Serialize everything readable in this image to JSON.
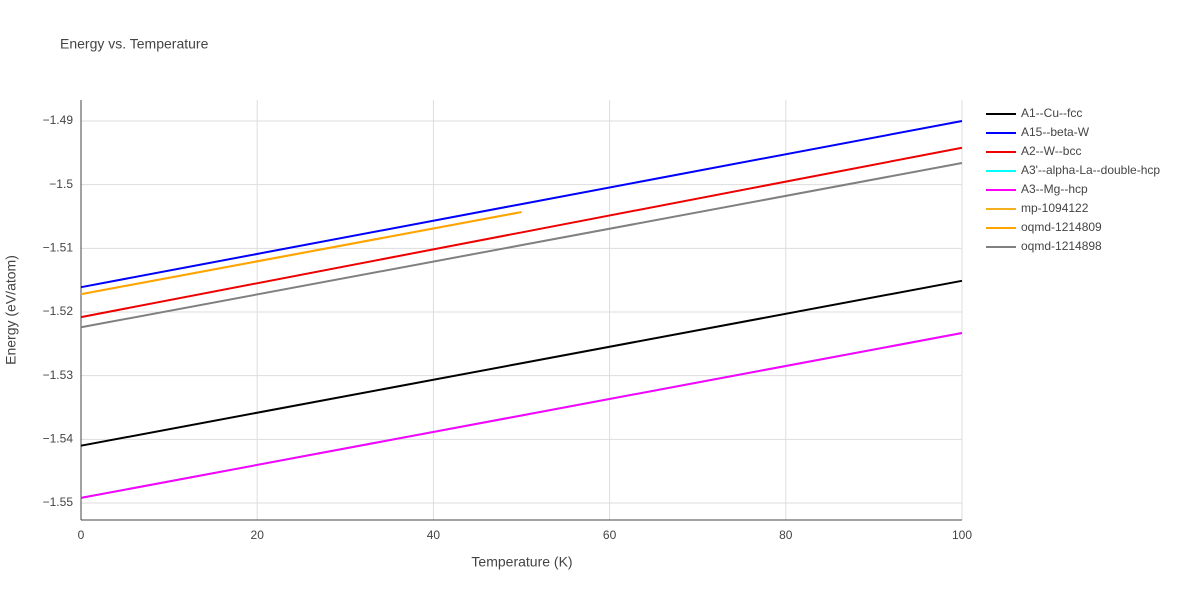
{
  "chart_data": {
    "type": "line",
    "title": "Energy vs. Temperature",
    "xlabel": "Temperature (K)",
    "ylabel": "Energy (eV/atom)",
    "x": [
      0,
      50,
      100
    ],
    "series": [
      {
        "name": "A1--Cu--fcc",
        "color": "#000000",
        "values": [
          -1.541,
          -1.52805,
          -1.5151
        ]
      },
      {
        "name": "A15--beta-W",
        "color": "#0000ff",
        "values": [
          -1.5161,
          -1.50305,
          -1.49
        ]
      },
      {
        "name": "A2--W--bcc",
        "color": "#ee0000",
        "values": [
          -1.5208,
          -1.5075,
          -1.4942
        ]
      },
      {
        "name": "A3'--alpha-La--double-hcp",
        "color": "#00ffff",
        "values": [
          -1.5492,
          -1.53625,
          -1.5233
        ]
      },
      {
        "name": "A3--Mg--hcp",
        "color": "#ff00ff",
        "values": [
          -1.5492,
          -1.53625,
          -1.5233
        ]
      },
      {
        "name": "mp-1094122",
        "color": "#f5b01f",
        "values": [
          -1.5172,
          -1.5043,
          null
        ]
      },
      {
        "name": "oqmd-1214809",
        "color": "#ffa500",
        "values": [
          -1.5172,
          -1.5043,
          null
        ]
      },
      {
        "name": "oqmd-1214898",
        "color": "#808080",
        "values": [
          -1.5224,
          -1.5095,
          -1.4966
        ]
      }
    ],
    "xlim": [
      0,
      100
    ],
    "xticks": [
      0,
      20,
      40,
      60,
      80,
      100
    ],
    "ylim": [
      -1.55267,
      -1.4867
    ],
    "yticks": [
      {
        "value": -1.55,
        "label": "−1.55"
      },
      {
        "value": -1.54,
        "label": "−1.54"
      },
      {
        "value": -1.53,
        "label": "−1.53"
      },
      {
        "value": -1.52,
        "label": "−1.52"
      },
      {
        "value": -1.51,
        "label": "−1.51"
      },
      {
        "value": -1.5,
        "label": "−1.5"
      },
      {
        "value": -1.49,
        "label": "−1.49"
      }
    ],
    "grid": true,
    "legend": "right"
  }
}
